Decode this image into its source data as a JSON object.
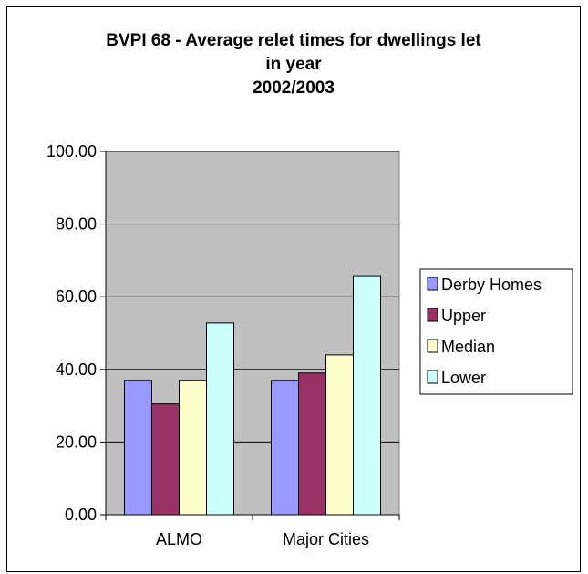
{
  "chart_data": {
    "type": "bar",
    "title_lines": [
      "BVPI 68 - Average relet times for dwellings let",
      "in year",
      "2002/2003"
    ],
    "categories": [
      "ALMO",
      "Major Cities"
    ],
    "series": [
      {
        "name": "Derby Homes",
        "values": [
          37,
          37
        ],
        "color": "#9999ff"
      },
      {
        "name": "Upper",
        "values": [
          30.5,
          39
        ],
        "color": "#993366"
      },
      {
        "name": "Median",
        "values": [
          37,
          44
        ],
        "color": "#ffffcc"
      },
      {
        "name": "Lower",
        "values": [
          52.8,
          65.8
        ],
        "color": "#ccffff"
      }
    ],
    "ylim": [
      0,
      100
    ],
    "yticks": [
      "0.00",
      "20.00",
      "40.00",
      "60.00",
      "80.00",
      "100.00"
    ],
    "grid": true,
    "plot_background": "#c0c0c0",
    "legend_position": "right"
  }
}
